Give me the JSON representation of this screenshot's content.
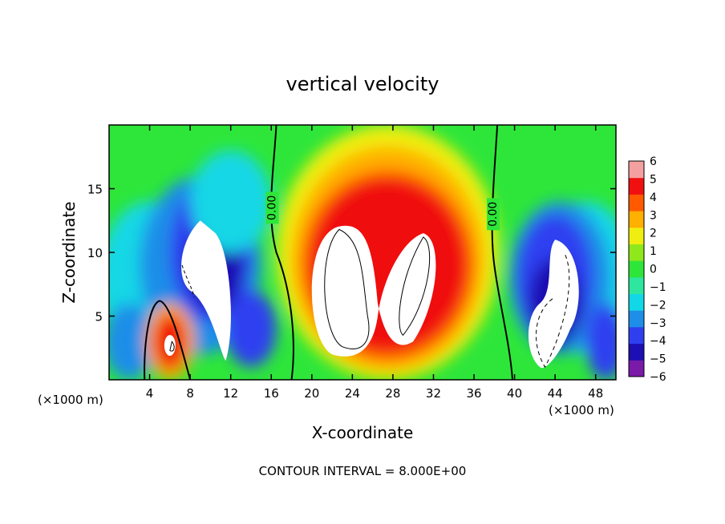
{
  "chart_data": {
    "type": "heatmap",
    "title": "vertical velocity",
    "xlabel": "X-coordinate",
    "ylabel": "Z-coordinate",
    "x_unit_label": "(×1000 m)",
    "xlim": [
      0,
      50
    ],
    "ylim": [
      0,
      20
    ],
    "x_ticks": [
      4,
      8,
      12,
      16,
      20,
      24,
      28,
      32,
      36,
      40,
      44,
      48
    ],
    "y_ticks": [
      5,
      10,
      15
    ],
    "colorbar": {
      "min": -6,
      "max": 6,
      "ticks": [
        6,
        5,
        4,
        3,
        2,
        1,
        0,
        -1,
        -2,
        -3,
        -4,
        -5,
        -6
      ],
      "stops": [
        {
          "v": -6,
          "color": "#7a1aa8"
        },
        {
          "v": -5,
          "color": "#1c0fb3"
        },
        {
          "v": -4,
          "color": "#2f3ff0"
        },
        {
          "v": -3,
          "color": "#1e8ee8"
        },
        {
          "v": -2,
          "color": "#12d7e6"
        },
        {
          "v": -1,
          "color": "#2ee6a0"
        },
        {
          "v": 0,
          "color": "#2ee63a"
        },
        {
          "v": 1,
          "color": "#8ee81c"
        },
        {
          "v": 2,
          "color": "#f0ee10"
        },
        {
          "v": 3,
          "color": "#ffb000"
        },
        {
          "v": 4,
          "color": "#ff5a00"
        },
        {
          "v": 5,
          "color": "#f01010"
        },
        {
          "v": 6,
          "color": "#f5a0a0"
        }
      ]
    },
    "contour_labels": [
      "0.00",
      "0.00"
    ],
    "contour_interval_text": "CONTOUR INTERVAL = 8.000E+00"
  }
}
